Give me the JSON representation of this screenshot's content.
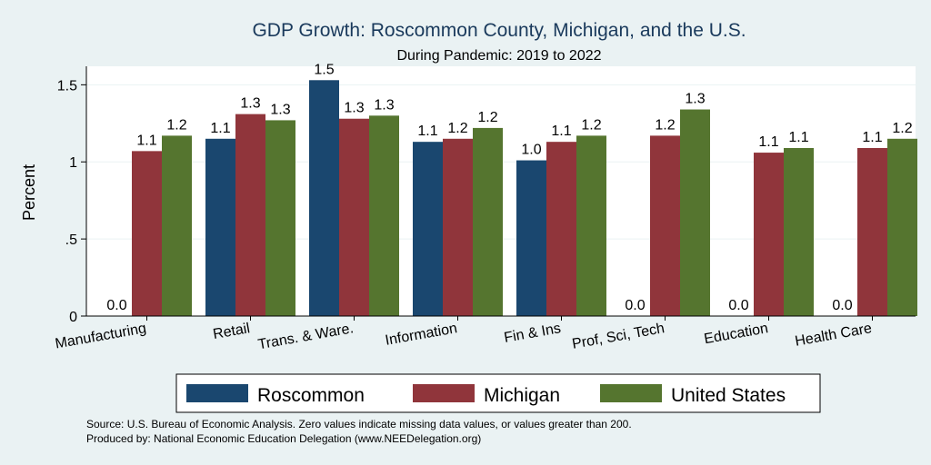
{
  "chart_data": {
    "type": "bar",
    "title": "GDP Growth: Roscommon County, Michigan, and the U.S.",
    "subtitle": "During Pandemic: 2019 to 2022",
    "xlabel": "",
    "ylabel": "Percent",
    "ylim": [
      0,
      1.62
    ],
    "yticks": [
      0,
      0.5,
      1,
      1.5
    ],
    "ytick_labels": [
      "0",
      ".5",
      "1",
      "1.5"
    ],
    "grid": true,
    "legend_position": "bottom",
    "categories": [
      "Manufacturing",
      "Retail",
      "Trans. & Ware.",
      "Information",
      "Fin & Ins",
      "Prof, Sci, Tech",
      "Education",
      "Health Care"
    ],
    "series": [
      {
        "name": "Roscommon",
        "color": "#1a476f",
        "values": [
          0,
          1.15,
          1.53,
          1.13,
          1.01,
          0,
          0,
          0
        ],
        "labels": [
          "0.0",
          "1.1",
          "1.5",
          "1.1",
          "1.0",
          "0.0",
          "0.0",
          "0.0"
        ]
      },
      {
        "name": "Michigan",
        "color": "#90353b",
        "values": [
          1.07,
          1.31,
          1.28,
          1.15,
          1.13,
          1.17,
          1.06,
          1.09
        ],
        "labels": [
          "1.1",
          "1.3",
          "1.3",
          "1.2",
          "1.1",
          "1.2",
          "1.1",
          "1.1"
        ]
      },
      {
        "name": "United States",
        "color": "#55752f",
        "values": [
          1.17,
          1.27,
          1.3,
          1.22,
          1.17,
          1.34,
          1.09,
          1.15
        ],
        "labels": [
          "1.2",
          "1.3",
          "1.3",
          "1.2",
          "1.2",
          "1.3",
          "1.1",
          "1.2"
        ]
      }
    ],
    "notes": [
      "Source: U.S. Bureau of Economic Analysis. Zero values indicate missing data values, or values greater than 200.",
      "Produced by: National Economic Education Delegation (www.NEEDelegation.org)"
    ]
  }
}
